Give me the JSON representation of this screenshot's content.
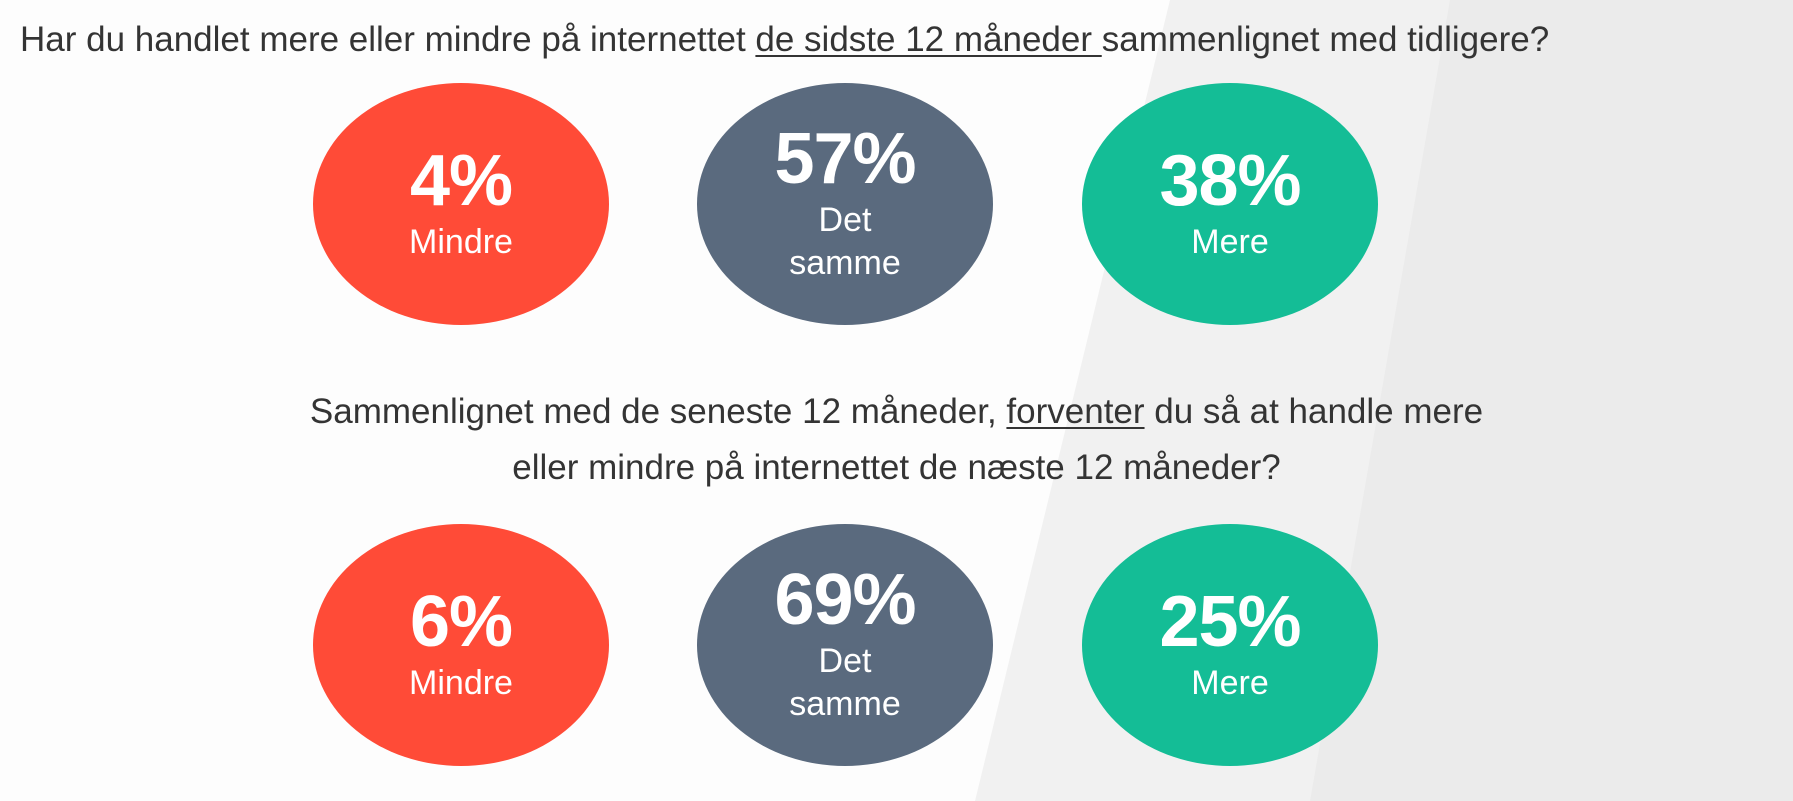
{
  "colors": {
    "mindre": "#ff4b37",
    "det_samme": "#5a6a7e",
    "mere": "#14bd96",
    "text": "#343434"
  },
  "question1": {
    "part1": "Har du handlet mere eller mindre på internettet ",
    "underlined": "de sidste 12 måneder ",
    "part2": "sammenlignet med tidligere?"
  },
  "question2": {
    "line1_before": "Sammenlignet med de seneste 12 måneder, ",
    "line1_underlined": "forventer",
    "line1_after": " du så at handle mere",
    "line2": "eller mindre på internettet de næste 12 måneder?"
  },
  "chart_data": [
    {
      "type": "pie",
      "categories": [
        "Mindre",
        "Det samme",
        "Mere"
      ],
      "values": [
        4,
        57,
        38
      ],
      "value_labels": [
        "4%",
        "57%",
        "38%"
      ],
      "category_labels": [
        "Mindre",
        "Det\nsamme",
        "Mere"
      ]
    },
    {
      "type": "pie",
      "categories": [
        "Mindre",
        "Det samme",
        "Mere"
      ],
      "values": [
        6,
        69,
        25
      ],
      "value_labels": [
        "6%",
        "69%",
        "25%"
      ],
      "category_labels": [
        "Mindre",
        "Det\nsamme",
        "Mere"
      ]
    }
  ]
}
